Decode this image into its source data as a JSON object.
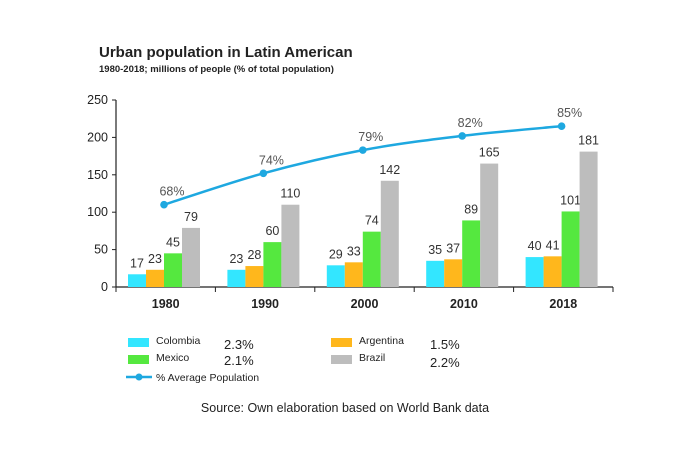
{
  "chart_data": {
    "type": "bar",
    "title": "Urban population in Latin American",
    "subtitle": "1980-2018; millions of people (% of total population)",
    "categories": [
      "1980",
      "1990",
      "2000",
      "2010",
      "2018"
    ],
    "ylim": [
      0,
      250
    ],
    "yticks": [
      0,
      50,
      100,
      150,
      200,
      250
    ],
    "series": [
      {
        "name": "Colombia",
        "color": "#33e6ff",
        "values": [
          17,
          23,
          29,
          35,
          40
        ],
        "growth": "2.3%"
      },
      {
        "name": "Argentina",
        "color": "#ffb71c",
        "values": [
          23,
          28,
          33,
          37,
          41
        ],
        "growth": "1.5%"
      },
      {
        "name": "Mexico",
        "color": "#55e83f",
        "values": [
          45,
          60,
          74,
          89,
          101
        ],
        "growth": "2.1%"
      },
      {
        "name": "Brazil",
        "color": "#bdbdbd",
        "values": [
          79,
          110,
          142,
          165,
          181
        ],
        "growth": "2.2%"
      }
    ],
    "line": {
      "name": "% Average Population",
      "color": "#1ea8e0",
      "values": [
        110,
        152,
        183,
        202,
        215
      ],
      "labels": [
        "68%",
        "74%",
        "79%",
        "82%",
        "85%"
      ]
    },
    "source": "Source: Own elaboration based on World Bank data"
  }
}
